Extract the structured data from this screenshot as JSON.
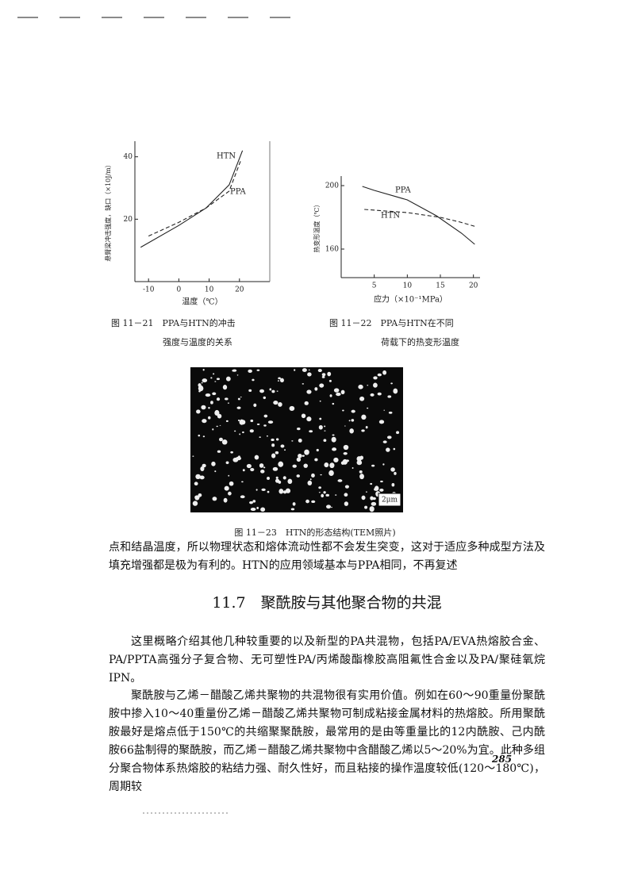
{
  "figures": [
    {
      "ylabel": "悬臂梁冲击强度，缺口（×10J/m）",
      "xlabel": "温度（℃）",
      "xlim": [
        -14.5,
        30
      ],
      "ylim": [
        0,
        45
      ],
      "xticks": [
        -10,
        0,
        10,
        20
      ],
      "yticks": [
        20,
        40
      ],
      "series": [
        {
          "name": "HTN",
          "line_style": "solid",
          "x": [
            -12.6,
            0,
            9,
            16.6,
            21
          ],
          "values": [
            11,
            18,
            23.6,
            31,
            42
          ]
        },
        {
          "name": "PPA",
          "line_style": "dashed",
          "x": [
            -10,
            0,
            9,
            16.6,
            20.5
          ],
          "values": [
            14.6,
            19,
            23.6,
            29,
            39
          ]
        }
      ],
      "caption": [
        "图 11－21　PPA与HTN的冲击",
        "强度与温度的关系"
      ]
    },
    {
      "ylabel": "热变形温度（℃）",
      "xlabel": "应力（×10⁻¹MPa）",
      "xlim": [
        0,
        21
      ],
      "ylim": [
        142,
        206
      ],
      "xticks": [
        5,
        10,
        15,
        20
      ],
      "yticks": [
        160,
        200
      ],
      "series": [
        {
          "name": "PPA",
          "line_style": "solid",
          "x": [
            3.2,
            5,
            10,
            14.4,
            18.2,
            20.2
          ],
          "values": [
            199.5,
            197,
            191,
            181,
            170,
            163
          ]
        },
        {
          "name": "HTN",
          "line_style": "dashed",
          "x": [
            3.5,
            10,
            15,
            18,
            20.5
          ],
          "values": [
            185,
            183,
            180,
            177,
            174
          ]
        }
      ],
      "caption": [
        "图 11－22　PPA与HTN在不同",
        "荷载下的热变形温度"
      ]
    }
  ],
  "tem": {
    "scale": "2μm",
    "caption": "图 11－23　HTN的形态结构(TEM照片)"
  },
  "body": {
    "intro": "点和结晶温度，所以物理状态和熔体流动性都不会发生突变，这对于适应多种成型方法及填充增强都是极为有利的。HTN的应用领域基本与PPA相同，不再复述",
    "heading": "11.7　聚酰胺与其他聚合物的共混",
    "paragraphs": [
      "这里概略介绍其他几种较重要的以及新型的PA共混物，包括PA/EVA热熔胶合金、PA/PPTA高强分子复合物、无可塑性PA/丙烯酸酯橡胶高阻氟性合金以及PA/聚硅氧烷IPN。",
      "聚酰胺与乙烯－醋酸乙烯共聚物的共混物很有实用价值。例如在60～90重量份聚酰胺中掺入10～40重量份乙烯－醋酸乙烯共聚物可制成粘接金属材料的热熔胶。所用聚酰胺最好是熔点低于150℃的共缩聚聚酰胺，最常用的是由等重量比的12内酰胺、己内酰胺66盐制得的聚酰胺，而乙烯－醋酸乙烯共聚物中含醋酸乙烯以5～20%为宜。此种多组分聚合物体系热熔胶的粘结力强、耐久性好，而且粘接的操作温度较低(120～180℃)，周期较"
    ],
    "page_number": "285"
  }
}
